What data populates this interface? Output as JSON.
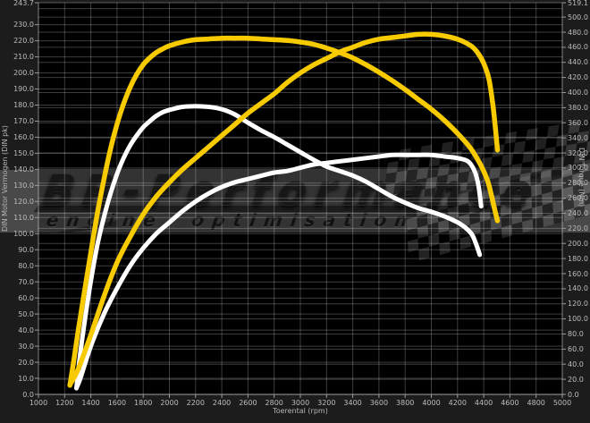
{
  "watermark": {
    "brand": "BR-Performance",
    "tagline": "engine optimisation"
  },
  "colors": {
    "outer_background": "#1C1C1C",
    "plot_background": "#000000",
    "grid": "rgba(255,255,255,0.24)",
    "tick": "#9A9A9A",
    "label_text": "#BDBDBD",
    "curve_tuned": "#F7CB00",
    "curve_original": "#FFFFFF"
  },
  "chart_data": {
    "type": "line",
    "title": "",
    "xlabel": "Toerental (rpm)",
    "ylabel_left": "DIN Motor Vermogen (DIN pk)",
    "ylabel_right": "DIN Torque (Nm)",
    "grid": true,
    "legend": false,
    "x_axis": {
      "min": 1000,
      "max": 5000,
      "grid_step": 200,
      "ticks": [
        1000,
        1200,
        1400,
        1600,
        1800,
        2000,
        2200,
        2400,
        2600,
        2800,
        3000,
        3200,
        3400,
        3600,
        3800,
        4000,
        4200,
        4400,
        4600,
        4800,
        5000
      ]
    },
    "y_left": {
      "min": 0,
      "max": 243.7,
      "grid_step": 10,
      "ticks": [
        0,
        10,
        20,
        30,
        40,
        50,
        60,
        70,
        80,
        90,
        100,
        110,
        120,
        130,
        140,
        150,
        160,
        170,
        180,
        190,
        200,
        210,
        220,
        230,
        243.7
      ]
    },
    "y_right": {
      "min": 0,
      "max": 519.1,
      "grid_step": 20,
      "ticks": [
        0,
        20,
        40,
        60,
        80,
        100,
        120,
        140,
        160,
        180,
        200,
        220,
        240,
        260,
        280,
        300,
        320,
        340,
        360,
        380,
        400,
        420,
        440,
        460,
        480,
        500,
        519.1
      ]
    },
    "series": [
      {
        "name": "torque-original",
        "axis": "right",
        "color": "#FFFFFF",
        "width": 5,
        "points": [
          [
            1290,
            8
          ],
          [
            1320,
            55
          ],
          [
            1360,
            105
          ],
          [
            1400,
            150
          ],
          [
            1450,
            198
          ],
          [
            1500,
            235
          ],
          [
            1550,
            266
          ],
          [
            1600,
            292
          ],
          [
            1650,
            313
          ],
          [
            1700,
            330
          ],
          [
            1750,
            343
          ],
          [
            1800,
            354
          ],
          [
            1850,
            362
          ],
          [
            1900,
            369
          ],
          [
            1950,
            374
          ],
          [
            2000,
            377
          ],
          [
            2100,
            381
          ],
          [
            2200,
            382
          ],
          [
            2300,
            381
          ],
          [
            2400,
            378
          ],
          [
            2500,
            371
          ],
          [
            2600,
            360
          ],
          [
            2700,
            350
          ],
          [
            2800,
            341
          ],
          [
            2900,
            331
          ],
          [
            3000,
            321
          ],
          [
            3100,
            311
          ],
          [
            3200,
            302
          ],
          [
            3300,
            296
          ],
          [
            3400,
            290
          ],
          [
            3500,
            282
          ],
          [
            3600,
            272
          ],
          [
            3700,
            262
          ],
          [
            3800,
            254
          ],
          [
            3900,
            247
          ],
          [
            4000,
            242
          ],
          [
            4100,
            236
          ],
          [
            4200,
            228
          ],
          [
            4260,
            221
          ],
          [
            4310,
            212
          ],
          [
            4340,
            200
          ],
          [
            4370,
            185
          ]
        ]
      },
      {
        "name": "power-original",
        "axis": "left",
        "color": "#FFFFFF",
        "width": 5,
        "points": [
          [
            1290,
            4
          ],
          [
            1320,
            10
          ],
          [
            1400,
            30
          ],
          [
            1500,
            50
          ],
          [
            1600,
            66
          ],
          [
            1700,
            80
          ],
          [
            1800,
            91
          ],
          [
            1900,
            100
          ],
          [
            2000,
            107
          ],
          [
            2100,
            114
          ],
          [
            2200,
            120
          ],
          [
            2300,
            125
          ],
          [
            2400,
            129
          ],
          [
            2500,
            132
          ],
          [
            2600,
            134
          ],
          [
            2700,
            136
          ],
          [
            2800,
            138
          ],
          [
            2900,
            139
          ],
          [
            3000,
            141
          ],
          [
            3100,
            143
          ],
          [
            3200,
            144
          ],
          [
            3300,
            145
          ],
          [
            3400,
            146
          ],
          [
            3500,
            147
          ],
          [
            3600,
            148
          ],
          [
            3700,
            149
          ],
          [
            3800,
            149
          ],
          [
            3900,
            149
          ],
          [
            4000,
            149
          ],
          [
            4100,
            148
          ],
          [
            4200,
            147
          ],
          [
            4280,
            145
          ],
          [
            4330,
            139
          ],
          [
            4360,
            130
          ],
          [
            4380,
            117
          ]
        ]
      },
      {
        "name": "power-tuned",
        "axis": "left",
        "color": "#F7CB00",
        "width": 5.5,
        "points": [
          [
            1240,
            6
          ],
          [
            1300,
            15
          ],
          [
            1400,
            37
          ],
          [
            1500,
            61
          ],
          [
            1600,
            82
          ],
          [
            1700,
            98
          ],
          [
            1800,
            112
          ],
          [
            1900,
            123
          ],
          [
            2000,
            132
          ],
          [
            2100,
            140
          ],
          [
            2200,
            147
          ],
          [
            2300,
            154
          ],
          [
            2400,
            161
          ],
          [
            2500,
            168
          ],
          [
            2600,
            175
          ],
          [
            2700,
            181
          ],
          [
            2800,
            187
          ],
          [
            2900,
            194
          ],
          [
            3000,
            200
          ],
          [
            3100,
            205
          ],
          [
            3200,
            209
          ],
          [
            3300,
            213
          ],
          [
            3400,
            216
          ],
          [
            3500,
            219
          ],
          [
            3600,
            221
          ],
          [
            3700,
            222
          ],
          [
            3800,
            223
          ],
          [
            3900,
            224
          ],
          [
            4000,
            224
          ],
          [
            4100,
            223
          ],
          [
            4200,
            221
          ],
          [
            4300,
            217
          ],
          [
            4350,
            213
          ],
          [
            4400,
            206
          ],
          [
            4440,
            196
          ],
          [
            4470,
            180
          ],
          [
            4490,
            165
          ],
          [
            4505,
            152
          ]
        ]
      },
      {
        "name": "torque-tuned",
        "axis": "right",
        "color": "#F7CB00",
        "width": 5.5,
        "points": [
          [
            1240,
            12
          ],
          [
            1270,
            45
          ],
          [
            1300,
            80
          ],
          [
            1350,
            135
          ],
          [
            1400,
            188
          ],
          [
            1450,
            240
          ],
          [
            1500,
            285
          ],
          [
            1550,
            325
          ],
          [
            1600,
            358
          ],
          [
            1650,
            385
          ],
          [
            1700,
            407
          ],
          [
            1750,
            424
          ],
          [
            1800,
            437
          ],
          [
            1850,
            446
          ],
          [
            1900,
            453
          ],
          [
            1950,
            458
          ],
          [
            2000,
            462
          ],
          [
            2100,
            467
          ],
          [
            2200,
            470
          ],
          [
            2300,
            471
          ],
          [
            2400,
            472
          ],
          [
            2500,
            472
          ],
          [
            2600,
            472
          ],
          [
            2700,
            471
          ],
          [
            2800,
            470
          ],
          [
            2900,
            469
          ],
          [
            3000,
            467
          ],
          [
            3100,
            464
          ],
          [
            3200,
            459
          ],
          [
            3300,
            453
          ],
          [
            3400,
            446
          ],
          [
            3500,
            437
          ],
          [
            3600,
            427
          ],
          [
            3700,
            416
          ],
          [
            3800,
            404
          ],
          [
            3900,
            391
          ],
          [
            4000,
            378
          ],
          [
            4100,
            363
          ],
          [
            4200,
            346
          ],
          [
            4300,
            326
          ],
          [
            4380,
            303
          ],
          [
            4430,
            283
          ],
          [
            4460,
            263
          ],
          [
            4485,
            244
          ],
          [
            4505,
            230
          ]
        ]
      }
    ]
  }
}
